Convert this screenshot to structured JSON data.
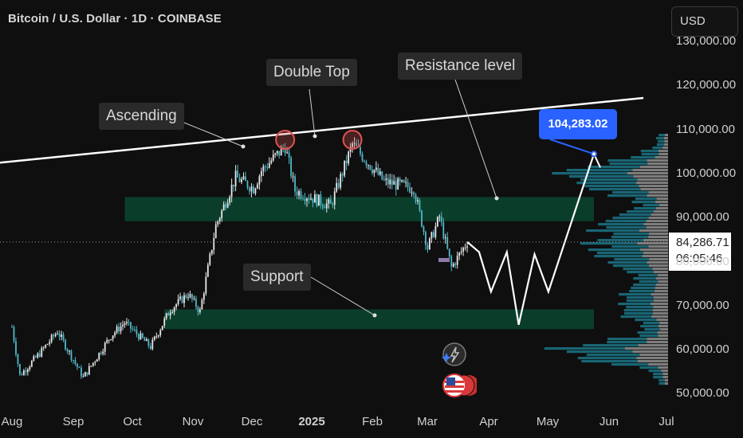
{
  "header": {
    "title": "Bitcoin / U.S. Dollar · 1D · COINBASE"
  },
  "currency_button": {
    "label": "USD"
  },
  "last_price": {
    "value": "84,286.71",
    "countdown": "06:05:46"
  },
  "annotations": {
    "ascending": "Ascending",
    "double_top": "Double Top",
    "resistance": "Resistance level",
    "support": "Support",
    "target": "104,283.02"
  },
  "colors": {
    "background": "#0f0f0f",
    "candle_up": "#e8e8e8",
    "candle_down": "#4fb8c9",
    "zone": "#0b3d2b",
    "projection": "#ffffff",
    "callout": "#2962ff",
    "top_circle": "#e05252"
  },
  "icons": [
    "lightning-icon",
    "us-flag-icon"
  ],
  "chart_data": {
    "type": "candlestick",
    "y_ticks": [
      "130,000.00",
      "120,000.00",
      "110,000.00",
      "100,000.00",
      "90,000.00",
      "80,000.00",
      "70,000.00",
      "60,000.00",
      "50,000.00"
    ],
    "x_ticks": [
      "Aug",
      "Sep",
      "Oct",
      "Nov",
      "Dec",
      "2025",
      "Feb",
      "Mar",
      "Apr",
      "May",
      "Jun",
      "Jul"
    ],
    "ylim": [
      48000,
      133000
    ],
    "close_path": [
      [
        "2024-08-01",
        65000
      ],
      [
        "2024-08-05",
        54000
      ],
      [
        "2024-08-15",
        59000
      ],
      [
        "2024-08-24",
        64000
      ],
      [
        "2024-09-06",
        53500
      ],
      [
        "2024-09-20",
        63000
      ],
      [
        "2024-09-27",
        66000
      ],
      [
        "2024-10-10",
        60500
      ],
      [
        "2024-10-20",
        69000
      ],
      [
        "2024-10-29",
        72500
      ],
      [
        "2024-11-04",
        68500
      ],
      [
        "2024-11-12",
        88000
      ],
      [
        "2024-11-22",
        99000
      ],
      [
        "2024-12-01",
        96500
      ],
      [
        "2024-12-05",
        100500
      ],
      [
        "2024-12-17",
        106000
      ],
      [
        "2024-12-22",
        96000
      ],
      [
        "2025-01-09",
        92500
      ],
      [
        "2025-01-20",
        106500
      ],
      [
        "2025-02-05",
        98000
      ],
      [
        "2025-02-20",
        96500
      ],
      [
        "2025-02-27",
        83000
      ],
      [
        "2025-03-05",
        90000
      ],
      [
        "2025-03-11",
        78500
      ],
      [
        "2025-03-19",
        84300
      ]
    ],
    "projection": [
      [
        "2025-03-19",
        84300
      ],
      [
        "2025-03-25",
        82000
      ],
      [
        "2025-03-31",
        73000
      ],
      [
        "2025-04-08",
        82000
      ],
      [
        "2025-04-14",
        65500
      ],
      [
        "2025-04-22",
        81500
      ],
      [
        "2025-04-29",
        73000
      ],
      [
        "2025-05-22",
        104283
      ]
    ],
    "resistance_line": [
      [
        "2024-06-16",
        100500
      ],
      [
        "2025-06-16",
        117000
      ]
    ],
    "zones": [
      {
        "label": "Resistance level",
        "from": "2024-09-27",
        "to": "2025-05-22",
        "low": 89000,
        "high": 94500
      },
      {
        "label": "Support",
        "from": "2024-10-17",
        "to": "2025-05-22",
        "low": 64500,
        "high": 69000
      }
    ],
    "double_top": [
      [
        "2024-12-17",
        107500
      ],
      [
        "2025-01-20",
        107500
      ]
    ],
    "last_price": 84286.71,
    "target_price": 104283.02
  }
}
